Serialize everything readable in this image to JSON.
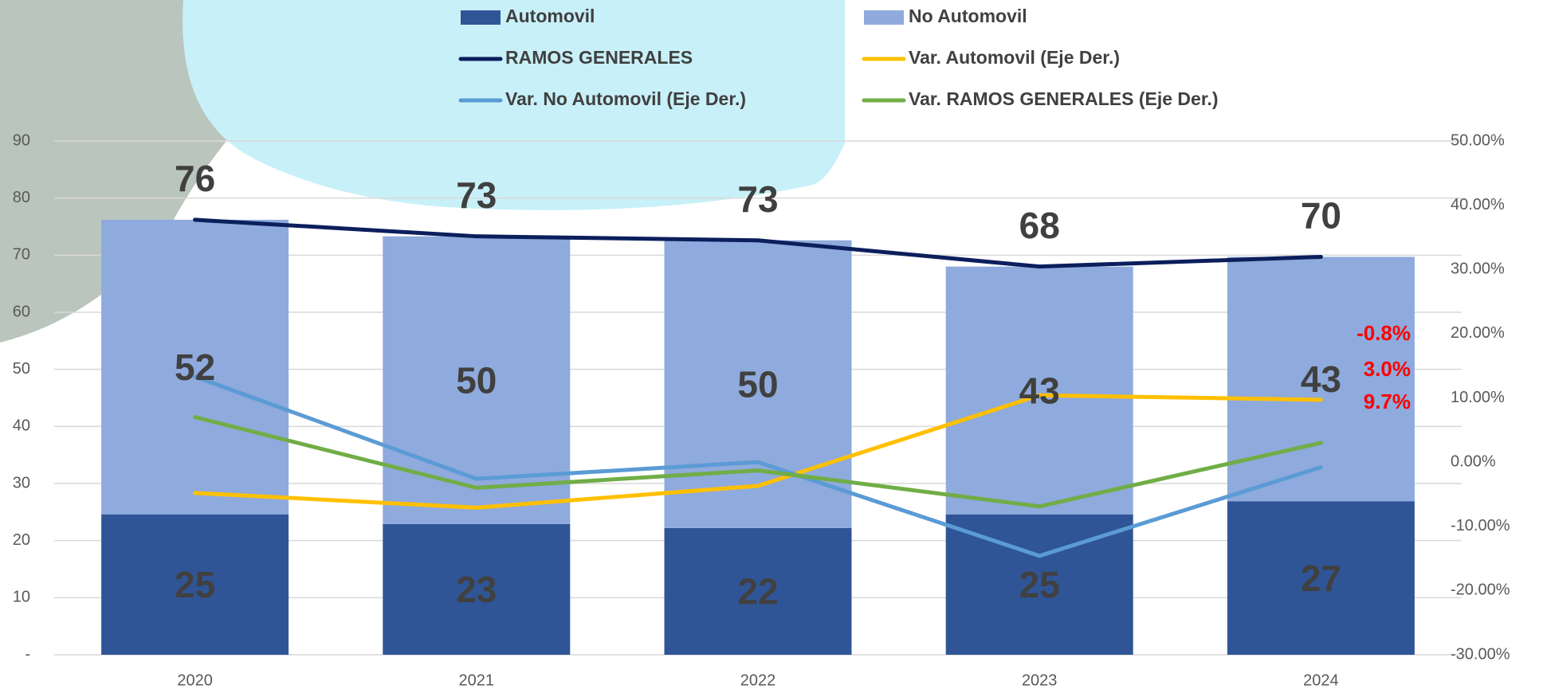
{
  "chart_data": {
    "type": "bar",
    "categories": [
      "2020",
      "2021",
      "2022",
      "2023",
      "2024"
    ],
    "series": [
      {
        "name": "Automovil",
        "type": "bar",
        "color": "#2f5597",
        "values": [
          24.6,
          22.9,
          22.2,
          24.6,
          26.9
        ],
        "value_labels": [
          "25",
          "23",
          "22",
          "25",
          "27"
        ]
      },
      {
        "name": "No Automovil",
        "type": "bar",
        "color": "#8faadc",
        "values": [
          51.6,
          50.4,
          50.4,
          43.4,
          42.8
        ],
        "value_labels": [
          "52",
          "50",
          "50",
          "43",
          "43"
        ]
      },
      {
        "name": "RAMOS GENERALES",
        "type": "line",
        "color": "#0b1f5c",
        "values": [
          76.2,
          73.3,
          72.6,
          68.0,
          69.7
        ],
        "value_labels": [
          "76",
          "73",
          "73",
          "68",
          "70"
        ]
      },
      {
        "name": "Var. Automovil (Eje Der.)",
        "type": "line",
        "axis": "y2",
        "color": "#ffc000",
        "values": [
          -4.8,
          -7.1,
          -3.7,
          10.4,
          9.7
        ],
        "value_labels": [
          null,
          null,
          null,
          null,
          "9.7%"
        ]
      },
      {
        "name": "Var. No Automovil (Eje Der.)",
        "type": "line",
        "axis": "y2",
        "color": "#5b9bd5",
        "values": [
          13.3,
          -2.6,
          0.0,
          -14.6,
          -0.8
        ],
        "value_labels": [
          null,
          null,
          null,
          null,
          "-0.8%"
        ]
      },
      {
        "name": "Var. RAMOS GENERALES (Eje Der.)",
        "type": "line",
        "axis": "y2",
        "color": "#70ad47",
        "values": [
          7.0,
          -4.0,
          -1.3,
          -6.9,
          3.0
        ],
        "value_labels": [
          null,
          null,
          null,
          null,
          "3.0%"
        ]
      }
    ],
    "ylim": [
      0,
      90
    ],
    "yticks": [
      {
        "value": 0,
        "label": "-"
      },
      10,
      20,
      30,
      40,
      50,
      60,
      70,
      80,
      90
    ],
    "y2lim": [
      -30,
      50
    ],
    "y2ticks": [
      {
        "value": -30,
        "label": "-30.00%"
      },
      {
        "value": -20,
        "label": "-20.00%"
      },
      {
        "value": -10,
        "label": "-10.00%"
      },
      {
        "value": 0,
        "label": "0.00%"
      },
      {
        "value": 10,
        "label": "10.00%"
      },
      {
        "value": 20,
        "label": "20.00%"
      },
      {
        "value": 30,
        "label": "30.00%"
      },
      {
        "value": 40,
        "label": "40.00%"
      },
      {
        "value": 50,
        "label": "50.00%"
      }
    ],
    "grid": true
  }
}
